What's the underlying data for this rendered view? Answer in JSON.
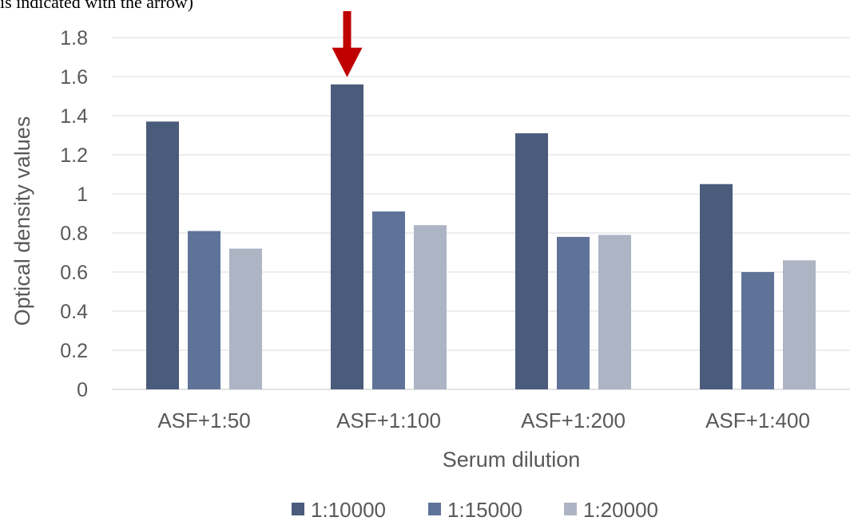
{
  "caption": "is indicated with the arrow)",
  "chart_data": {
    "type": "bar",
    "categories": [
      "ASF+1:50",
      "ASF+1:100",
      "ASF+1:200",
      "ASF+1:400"
    ],
    "series": [
      {
        "name": "1:10000",
        "color": "#4a5b7b",
        "values": [
          1.37,
          1.56,
          1.31,
          1.05
        ]
      },
      {
        "name": "1:15000",
        "color": "#5f7399",
        "values": [
          0.81,
          0.91,
          0.78,
          0.6
        ]
      },
      {
        "name": "1:20000",
        "color": "#adb4c4",
        "values": [
          0.72,
          0.84,
          0.79,
          0.66
        ]
      }
    ],
    "xlabel": "Serum dilution",
    "ylabel": "Optical density values",
    "ylim": [
      0,
      1.8
    ],
    "yticks": [
      "0",
      "0.2",
      "0.4",
      "0.6",
      "0.8",
      "1",
      "1.2",
      "1.4",
      "1.6",
      "1.8"
    ],
    "grid": true,
    "legend_position": "bottom",
    "annotation": {
      "type": "arrow",
      "category": "ASF+1:100",
      "series": "1:10000",
      "color": "#c00000"
    }
  }
}
